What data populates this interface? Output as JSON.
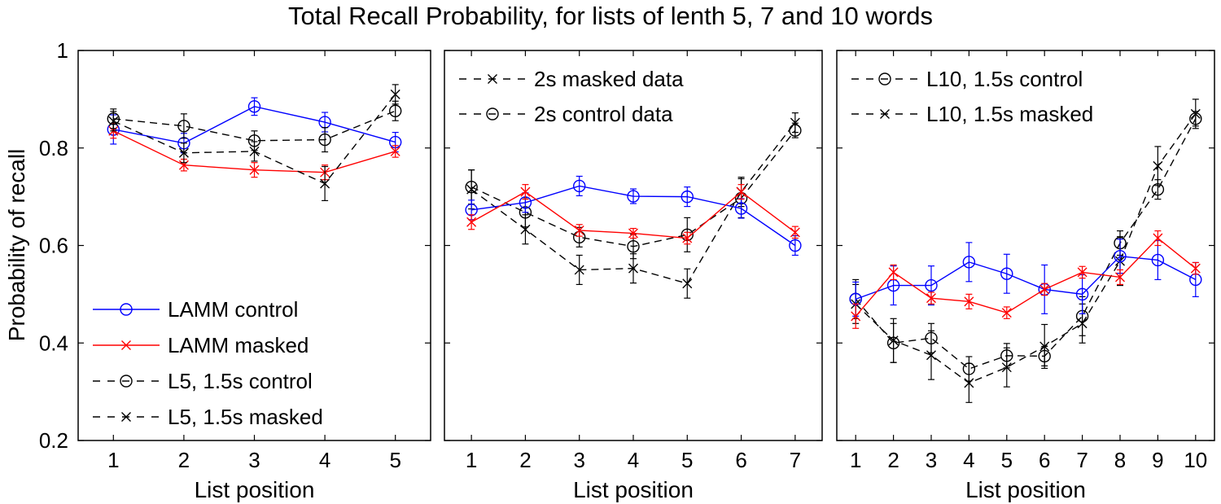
{
  "figure": {
    "title": "Total Recall Probability, for lists of lenth 5, 7 and 10 words",
    "ylabel": "Probability of recall"
  },
  "chart_data": [
    {
      "type": "line",
      "title": "",
      "xlabel": "List position",
      "ylabel": "Probability of recall",
      "xlim": [
        0.5,
        5.5
      ],
      "ylim": [
        0.2,
        1.0
      ],
      "xticks": [
        "1",
        "2",
        "3",
        "4",
        "5"
      ],
      "yticks": [
        "0.2",
        "0.4",
        "0.6",
        "0.8",
        "1"
      ],
      "legend_position": "bottom-left",
      "series": [
        {
          "name": "LAMM control",
          "color": "#0000ff",
          "marker": "o",
          "dash": "solid",
          "in_legend": true,
          "x": [
            1,
            2,
            3,
            4,
            5
          ],
          "y": [
            0.838,
            0.81,
            0.885,
            0.853,
            0.812
          ],
          "err": [
            0.03,
            0.02,
            0.018,
            0.02,
            0.02
          ]
        },
        {
          "name": "LAMM masked",
          "color": "#ff0000",
          "marker": "x",
          "dash": "solid",
          "in_legend": true,
          "x": [
            1,
            2,
            3,
            4,
            5
          ],
          "y": [
            0.835,
            0.765,
            0.755,
            0.75,
            0.793
          ],
          "err": [
            0.015,
            0.012,
            0.015,
            0.015,
            0.012
          ]
        },
        {
          "name": "L5, 1.5s control",
          "color": "#000000",
          "marker": "o",
          "dash": "dashed",
          "in_legend": true,
          "x": [
            1,
            2,
            3,
            4,
            5
          ],
          "y": [
            0.86,
            0.845,
            0.815,
            0.817,
            0.876
          ],
          "err": [
            0.02,
            0.025,
            0.02,
            0.025,
            0.02
          ]
        },
        {
          "name": "L5, 1.5s masked",
          "color": "#000000",
          "marker": "x",
          "dash": "dashed",
          "in_legend": true,
          "x": [
            1,
            2,
            3,
            4,
            5
          ],
          "y": [
            0.855,
            0.79,
            0.793,
            0.727,
            0.91
          ],
          "err": [
            0.02,
            0.02,
            0.02,
            0.035,
            0.02
          ]
        }
      ]
    },
    {
      "type": "line",
      "title": "",
      "xlabel": "List position",
      "ylabel": "",
      "xlim": [
        0.5,
        7.5
      ],
      "ylim": [
        0.2,
        1.0
      ],
      "xticks": [
        "1",
        "2",
        "3",
        "4",
        "5",
        "6",
        "7"
      ],
      "yticks": [],
      "legend_position": "top-left",
      "series": [
        {
          "name": "2s masked data",
          "color": "#000000",
          "marker": "x",
          "dash": "dashed",
          "in_legend": true,
          "x": [
            1,
            2,
            3,
            4,
            5,
            6,
            7
          ],
          "y": [
            0.715,
            0.633,
            0.55,
            0.553,
            0.522,
            0.71,
            0.852
          ],
          "err": [
            0.04,
            0.03,
            0.03,
            0.03,
            0.03,
            0.03,
            0.02
          ]
        },
        {
          "name": "2s control data",
          "color": "#000000",
          "marker": "o",
          "dash": "dashed",
          "in_legend": true,
          "x": [
            1,
            2,
            3,
            4,
            5,
            6,
            7
          ],
          "y": [
            0.72,
            0.668,
            0.617,
            0.598,
            0.622,
            0.697,
            0.836
          ],
          "err": [
            0.035,
            0.03,
            0.02,
            0.025,
            0.035,
            0.04,
            0.015
          ]
        },
        {
          "name": "",
          "color": "#0000ff",
          "marker": "o",
          "dash": "solid",
          "in_legend": false,
          "x": [
            1,
            2,
            3,
            4,
            5,
            6,
            7
          ],
          "y": [
            0.673,
            0.688,
            0.722,
            0.701,
            0.7,
            0.676,
            0.6
          ],
          "err": [
            0.02,
            0.02,
            0.02,
            0.015,
            0.02,
            0.02,
            0.02
          ]
        },
        {
          "name": "",
          "color": "#ff0000",
          "marker": "x",
          "dash": "solid",
          "in_legend": false,
          "x": [
            1,
            2,
            3,
            4,
            5,
            6,
            7
          ],
          "y": [
            0.648,
            0.71,
            0.631,
            0.625,
            0.615,
            0.71,
            0.627
          ],
          "err": [
            0.015,
            0.015,
            0.012,
            0.01,
            0.012,
            0.015,
            0.012
          ]
        }
      ]
    },
    {
      "type": "line",
      "title": "",
      "xlabel": "List position",
      "ylabel": "",
      "xlim": [
        0.5,
        10.5
      ],
      "ylim": [
        0.2,
        1.0
      ],
      "xticks": [
        "1",
        "2",
        "3",
        "4",
        "5",
        "6",
        "7",
        "8",
        "9",
        "10"
      ],
      "yticks": [],
      "legend_position": "top-left",
      "series": [
        {
          "name": "L10, 1.5s control",
          "color": "#000000",
          "marker": "o",
          "dash": "dashed",
          "in_legend": true,
          "x": [
            1,
            2,
            3,
            4,
            5,
            6,
            7,
            8,
            9,
            10
          ],
          "y": [
            0.49,
            0.4,
            0.41,
            0.347,
            0.374,
            0.373,
            0.455,
            0.605,
            0.715,
            0.86
          ],
          "err": [
            0.04,
            0.04,
            0.03,
            0.025,
            0.025,
            0.02,
            0.04,
            0.025,
            0.02,
            0.015
          ]
        },
        {
          "name": "L10, 1.5s masked",
          "color": "#000000",
          "marker": "x",
          "dash": "dashed",
          "in_legend": true,
          "x": [
            1,
            2,
            3,
            4,
            5,
            6,
            7,
            8,
            9,
            10
          ],
          "y": [
            0.48,
            0.405,
            0.375,
            0.318,
            0.35,
            0.393,
            0.44,
            0.568,
            0.763,
            0.87
          ],
          "err": [
            0.04,
            0.045,
            0.05,
            0.04,
            0.04,
            0.045,
            0.04,
            0.05,
            0.04,
            0.03
          ]
        },
        {
          "name": "",
          "color": "#0000ff",
          "marker": "o",
          "dash": "solid",
          "in_legend": false,
          "x": [
            1,
            2,
            3,
            4,
            5,
            6,
            7,
            8,
            9,
            10
          ],
          "y": [
            0.49,
            0.518,
            0.518,
            0.566,
            0.542,
            0.51,
            0.5,
            0.578,
            0.57,
            0.53
          ],
          "err": [
            0.035,
            0.04,
            0.04,
            0.04,
            0.04,
            0.05,
            0.04,
            0.035,
            0.04,
            0.035
          ]
        },
        {
          "name": "",
          "color": "#ff0000",
          "marker": "x",
          "dash": "solid",
          "in_legend": false,
          "x": [
            1,
            2,
            3,
            4,
            5,
            6,
            7,
            8,
            9,
            10
          ],
          "y": [
            0.455,
            0.545,
            0.492,
            0.485,
            0.462,
            0.51,
            0.545,
            0.535,
            0.615,
            0.553
          ],
          "err": [
            0.025,
            0.015,
            0.012,
            0.015,
            0.012,
            0.012,
            0.012,
            0.015,
            0.015,
            0.012
          ]
        }
      ]
    }
  ]
}
